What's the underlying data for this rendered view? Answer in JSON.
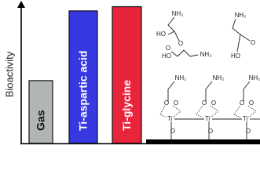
{
  "chart_data": {
    "type": "bar",
    "y_label": "Bioactivity",
    "categories": [
      "Gas",
      "Ti-aspartic acid",
      "Ti-glycine"
    ],
    "values": [
      0.45,
      0.95,
      0.98
    ],
    "colors": [
      "#b1b5b5",
      "#3838e0",
      "#e8243a"
    ],
    "ylim": [
      0,
      1
    ],
    "annotations": [
      "NH₂",
      "HO",
      "O",
      "HO",
      "O",
      "NH₂",
      "NH₂",
      "HO",
      "O",
      "NH₂",
      "O",
      "O",
      "Ti",
      "O",
      "NH₂",
      "O",
      "O",
      "Ti",
      "O",
      "NH₂",
      "O",
      "O",
      "Ti",
      "O"
    ]
  }
}
